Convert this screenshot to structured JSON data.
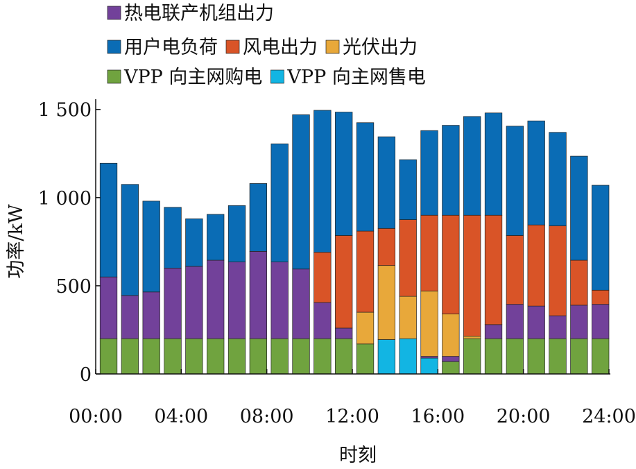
{
  "chart_data": {
    "type": "bar",
    "stacked": true,
    "xlabel": "时刻",
    "ylabel": "功率/kW",
    "ylim": [
      0,
      1550
    ],
    "yticks": [
      0,
      500,
      1000,
      1500
    ],
    "ytick_labels": [
      "0",
      "500",
      "1 000",
      "1 500"
    ],
    "xlim": [
      0,
      24
    ],
    "xtick_labels": [
      "00:00",
      "04:00",
      "08:00",
      "12:00",
      "16:00",
      "20:00",
      "24:00"
    ],
    "x": [
      1,
      2,
      3,
      4,
      5,
      6,
      7,
      8,
      9,
      10,
      11,
      12,
      13,
      14,
      15,
      16,
      17,
      18,
      19,
      20,
      21,
      22,
      23,
      24
    ],
    "legend_position": "top-left",
    "series": [
      {
        "name": "VPP 向主网购电",
        "color": "#70a33f",
        "values": [
          200,
          200,
          200,
          200,
          200,
          200,
          200,
          200,
          200,
          200,
          200,
          200,
          170,
          0,
          0,
          0,
          70,
          200,
          200,
          200,
          200,
          200,
          200,
          200
        ]
      },
      {
        "name": "VPP 向主网售电",
        "color": "#12b5e3",
        "values": [
          0,
          0,
          0,
          0,
          0,
          0,
          0,
          0,
          0,
          0,
          0,
          0,
          0,
          195,
          200,
          90,
          0,
          0,
          0,
          0,
          0,
          0,
          0,
          0
        ]
      },
      {
        "name": "热电联产机组出力",
        "color": "#72419a",
        "values": [
          350,
          245,
          265,
          400,
          410,
          445,
          435,
          495,
          435,
          395,
          205,
          60,
          0,
          0,
          0,
          10,
          30,
          0,
          80,
          195,
          185,
          130,
          190,
          195
        ]
      },
      {
        "name": "光伏出力",
        "color": "#e8a83a",
        "values": [
          0,
          0,
          0,
          0,
          0,
          0,
          0,
          0,
          0,
          0,
          0,
          0,
          180,
          420,
          240,
          370,
          240,
          15,
          0,
          0,
          0,
          0,
          0,
          0
        ]
      },
      {
        "name": "风电出力",
        "color": "#d95427",
        "values": [
          0,
          0,
          0,
          0,
          0,
          0,
          0,
          0,
          0,
          0,
          285,
          525,
          460,
          210,
          435,
          430,
          560,
          685,
          620,
          390,
          460,
          510,
          255,
          80
        ]
      },
      {
        "name": "用户电负荷",
        "color": "#0a6cb5",
        "values": [
          645,
          630,
          515,
          345,
          270,
          260,
          320,
          385,
          670,
          875,
          805,
          700,
          615,
          520,
          340,
          480,
          510,
          560,
          580,
          620,
          590,
          530,
          590,
          595
        ]
      }
    ],
    "legend_order": [
      "热电联产机组出力",
      "用户电负荷",
      "风电出力",
      "光伏出力",
      "VPP 向主网购电",
      "VPP 向主网售电"
    ]
  }
}
